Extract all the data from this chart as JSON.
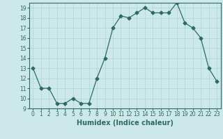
{
  "x": [
    0,
    1,
    2,
    3,
    4,
    5,
    6,
    7,
    8,
    9,
    10,
    11,
    12,
    13,
    14,
    15,
    16,
    17,
    18,
    19,
    20,
    21,
    22,
    23
  ],
  "y": [
    13,
    11,
    11,
    9.5,
    9.5,
    10,
    9.5,
    9.5,
    12,
    14,
    17,
    18.2,
    18,
    18.5,
    19,
    18.5,
    18.5,
    18.5,
    19.5,
    17.5,
    17,
    16,
    13,
    11.7
  ],
  "line_color": "#2e6b5e",
  "marker": "D",
  "markersize": 2.5,
  "linewidth": 0.9,
  "xlabel": "Humidex (Indice chaleur)",
  "xlim": [
    -0.5,
    23.5
  ],
  "ylim": [
    9,
    19.5
  ],
  "yticks": [
    9,
    10,
    11,
    12,
    13,
    14,
    15,
    16,
    17,
    18,
    19
  ],
  "xticks": [
    0,
    1,
    2,
    3,
    4,
    5,
    6,
    7,
    8,
    9,
    10,
    11,
    12,
    13,
    14,
    15,
    16,
    17,
    18,
    19,
    20,
    21,
    22,
    23
  ],
  "bg_color": "#cce8e8",
  "grid_color": "#aad4d4",
  "tick_fontsize": 5.5,
  "xlabel_fontsize": 7
}
